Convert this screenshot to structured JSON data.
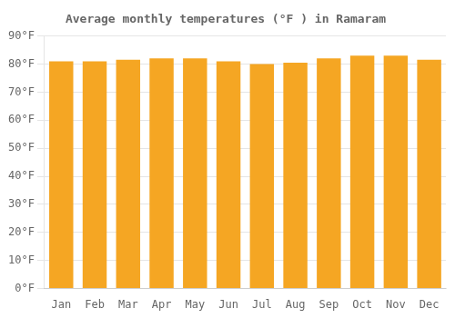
{
  "chart_data": {
    "type": "bar",
    "title": "Average monthly temperatures (°F ) in Ramaram",
    "categories": [
      "Jan",
      "Feb",
      "Mar",
      "Apr",
      "May",
      "Jun",
      "Jul",
      "Aug",
      "Sep",
      "Oct",
      "Nov",
      "Dec"
    ],
    "values": [
      81,
      81,
      81.5,
      82,
      82,
      81,
      80,
      80.5,
      82,
      83,
      83,
      81.5
    ],
    "color": "#F5A623",
    "ylim": [
      0,
      90
    ],
    "yticks": [
      {
        "value": 0,
        "label": "0°F"
      },
      {
        "value": 10,
        "label": "10°F"
      },
      {
        "value": 20,
        "label": "20°F"
      },
      {
        "value": 30,
        "label": "30°F"
      },
      {
        "value": 40,
        "label": "40°F"
      },
      {
        "value": 50,
        "label": "50°F"
      },
      {
        "value": 60,
        "label": "60°F"
      },
      {
        "value": 70,
        "label": "70°F"
      },
      {
        "value": 80,
        "label": "80°F"
      },
      {
        "value": 90,
        "label": "90°F"
      }
    ],
    "grid": true
  }
}
